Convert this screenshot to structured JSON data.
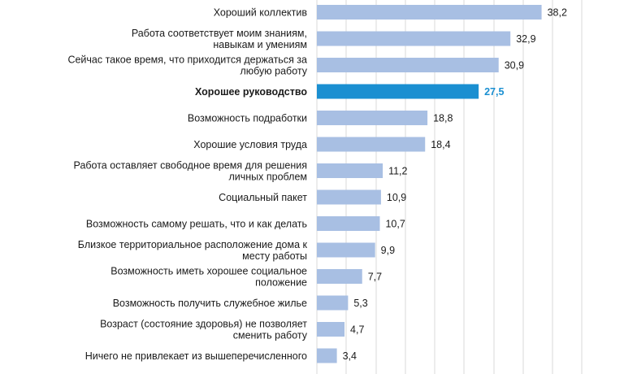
{
  "chart_data": {
    "type": "bar",
    "orientation": "horizontal",
    "grid": true,
    "xlim": [
      0,
      45
    ],
    "colors": {
      "bar": "#a8bfe3",
      "highlight": "#1a8fd1"
    },
    "highlight_index": 3,
    "categories": [
      [
        "Хороший коллектив"
      ],
      [
        "Работа соответствует моим знаниям,",
        "навыкам и умениям"
      ],
      [
        "Сейчас такое время, что приходится держаться за",
        "любую работу"
      ],
      [
        "Хорошее руководство"
      ],
      [
        "Возможность подработки"
      ],
      [
        "Хорошие условия труда"
      ],
      [
        "Работа оставляет свободное время для решения",
        "личных проблем"
      ],
      [
        "Социальный пакет"
      ],
      [
        "Возможность самому решать, что и как делать"
      ],
      [
        "Близкое территориальное расположение дома к",
        "месту работы"
      ],
      [
        "Возможность иметь хорошее социальное",
        "положение"
      ],
      [
        "Возможность получить служебное жилье"
      ],
      [
        "Возраст (состояние здоровья) не позволяет",
        "сменить работу"
      ],
      [
        "Ничего не привлекает из вышеперечисленного"
      ]
    ],
    "values": [
      38.2,
      32.9,
      30.9,
      27.5,
      18.8,
      18.4,
      11.2,
      10.9,
      10.7,
      9.9,
      7.7,
      5.3,
      4.7,
      3.4
    ],
    "value_labels": [
      "38,2",
      "32,9",
      "30,9",
      "27,5",
      "18,8",
      "18,4",
      "11,2",
      "10,9",
      "10,7",
      "9,9",
      "7,7",
      "5,3",
      "4,7",
      "3,4"
    ]
  }
}
